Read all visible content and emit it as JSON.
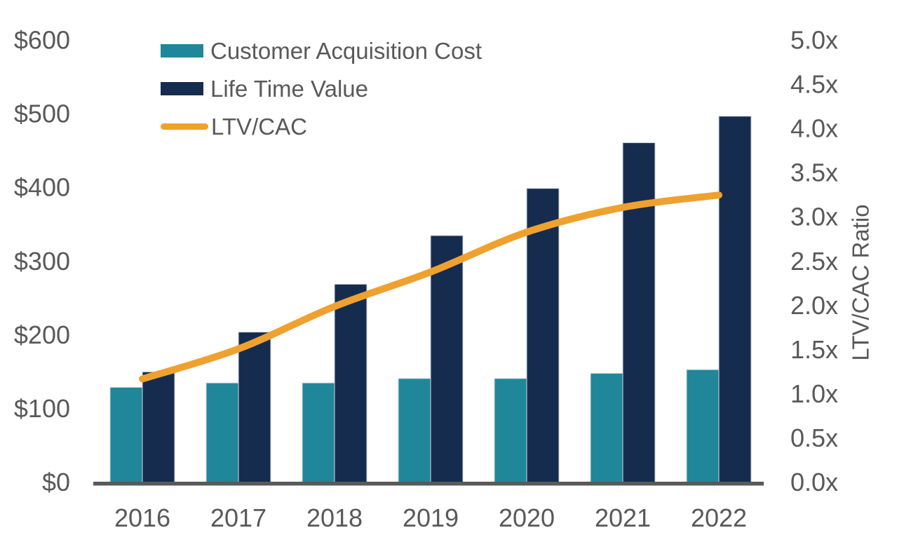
{
  "chart_data": {
    "type": "combo-bar-line",
    "title": "",
    "categories": [
      "2016",
      "2017",
      "2018",
      "2019",
      "2020",
      "2021",
      "2022"
    ],
    "series": [
      {
        "name": "Customer Acquisition Cost",
        "type": "bar",
        "axis": "left",
        "color": "#1F8799",
        "values": [
          129,
          135,
          135,
          141,
          141,
          148,
          153
        ]
      },
      {
        "name": "Life Time Value",
        "type": "bar",
        "axis": "left",
        "color": "#152C4F",
        "values": [
          150,
          204,
          269,
          335,
          399,
          461,
          497
        ]
      },
      {
        "name": "LTV/CAC",
        "type": "line",
        "axis": "right",
        "color": "#EFA12F",
        "values": [
          1.17,
          1.51,
          1.99,
          2.38,
          2.83,
          3.11,
          3.25
        ]
      }
    ],
    "left_axis": {
      "min": 0,
      "max": 600,
      "tick_step": 100,
      "tick_labels": [
        "$0",
        "$100",
        "$200",
        "$300",
        "$400",
        "$500",
        "$600"
      ]
    },
    "right_axis": {
      "min": 0,
      "max": 5,
      "tick_step": 0.5,
      "tick_labels": [
        "0.0x",
        "0.5x",
        "1.0x",
        "1.5x",
        "2.0x",
        "2.5x",
        "3.0x",
        "3.5x",
        "4.0x",
        "4.5x",
        "5.0x"
      ],
      "label": "LTV/CAC Ratio"
    },
    "legend_position": "top-left",
    "grid": false,
    "background_color": "#FFFFFF",
    "text_color": "#595959",
    "axis_line_color": "#595959",
    "line_smoothing": true
  }
}
